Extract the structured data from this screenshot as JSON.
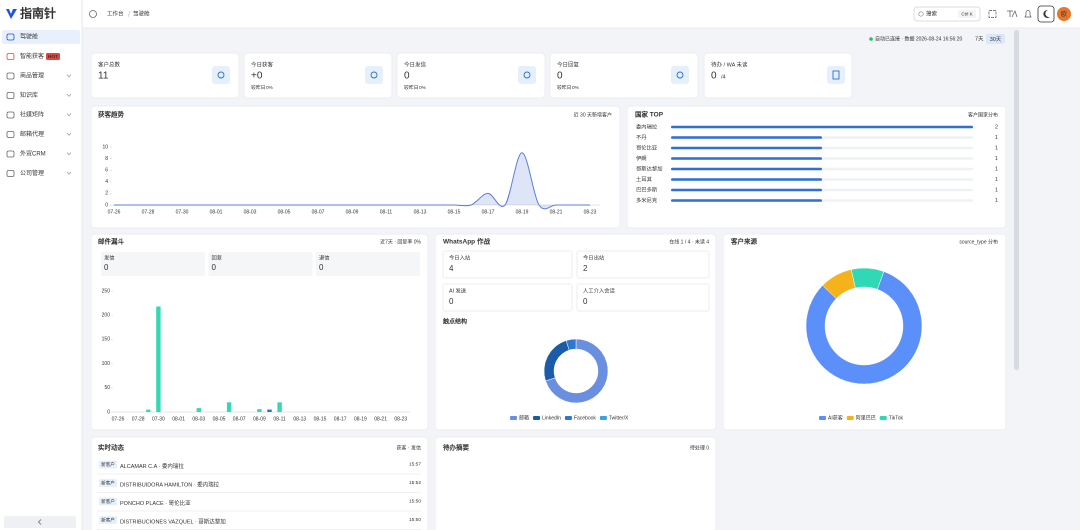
{
  "sidebar": {
    "logo": "指南针",
    "menu": [
      {
        "label": "驾驶舱"
      },
      {
        "label": "智能获客",
        "tag": "HOT"
      },
      {
        "label": "商品管理"
      },
      {
        "label": "知识库"
      },
      {
        "label": "社媒矩阵"
      },
      {
        "label": "邮箱代理"
      },
      {
        "label": "外贸CRM"
      },
      {
        "label": "公司管理"
      }
    ]
  },
  "topbar": {
    "breadcrumb": [
      "工作台",
      "驾驶舱"
    ],
    "search": "搜索",
    "shortcut": "Ctrl K",
    "avatar": "欧"
  },
  "status": {
    "text": "自动已连接 · 数据 2026-08-24 16:56:20",
    "ranges": [
      "7天",
      "30天"
    ]
  },
  "stats": [
    {
      "label": "客户总数",
      "value": 11
    },
    {
      "label": "今日获客",
      "value": "+0",
      "sub": "较昨日",
      "change": "0%"
    },
    {
      "label": "今日发信",
      "value": 0,
      "sub": "较昨日",
      "change": "0%"
    },
    {
      "label": "今日回复",
      "value": 0,
      "sub": "较昨日",
      "change": "0%"
    },
    {
      "label": "待办 / WA 未读",
      "value": 0,
      "extra": "/4"
    }
  ],
  "mail_stats": [
    {
      "label": "发信",
      "value": 0
    },
    {
      "label": "回复",
      "value": 0
    },
    {
      "label": "退信",
      "value": 0
    }
  ],
  "whatsapp": {
    "title": "WhatsApp 作战",
    "subtitle": "在线 1 / 4 · 未读 4",
    "stats": [
      {
        "label": "今日入站",
        "value": 4
      },
      {
        "label": "今日出站",
        "value": 2
      },
      {
        "label": "AI 发送",
        "value": 0
      },
      {
        "label": "人工介入会话",
        "value": 0
      }
    ]
  },
  "activity": {
    "title": "实时动态",
    "subtitle": "获客 · 发信",
    "rows": [
      {
        "tag": "新客户",
        "text": "ALCAMAR C.A · 委内瑞拉",
        "time": "15:57"
      },
      {
        "tag": "新客户",
        "text": "DISTRIBUIDORA HAMILTON · 委内瑞拉",
        "time": "15:52"
      },
      {
        "tag": "新客户",
        "text": "PONCHO PLACE · 哥伦比亚",
        "time": "15:50"
      },
      {
        "tag": "新客户",
        "text": "DISTRIBUCIONES VAZQUEL · 哥斯达黎加",
        "time": "15:50"
      }
    ]
  },
  "todo": {
    "title": "待办摘要",
    "subtitle": "待处理 0"
  },
  "chart_data": [
    {
      "type": "line",
      "title": "获客趋势",
      "subtitle": "近 30 天新增客户",
      "color": "#5b7fd6",
      "categories": [
        "07-26",
        null,
        "07-28",
        null,
        "07-30",
        null,
        "08-01",
        null,
        "08-03",
        null,
        "08-05",
        null,
        "08-07",
        null,
        "08-09",
        null,
        "08-11",
        null,
        "08-13",
        null,
        "08-15",
        null,
        "08-17",
        null,
        "08-19",
        null,
        "08-21",
        null,
        "08-23"
      ],
      "values": [
        0,
        0,
        0,
        0,
        0,
        0,
        0,
        0,
        0,
        0,
        0,
        0,
        0,
        0,
        0,
        0,
        0,
        0,
        0,
        0,
        0,
        0,
        2,
        0,
        9,
        0,
        0,
        0,
        0
      ],
      "ylim": [
        0,
        10
      ],
      "yticks": [
        0,
        2,
        4,
        6,
        8,
        10
      ]
    },
    {
      "type": "bar",
      "title": "邮件漏斗",
      "subtitle": "近7天 · 回复率 0%",
      "categories": [
        "07-26",
        null,
        "07-28",
        null,
        "07-30",
        null,
        "08-01",
        null,
        "08-03",
        null,
        "08-05",
        null,
        "08-07",
        null,
        "08-09",
        null,
        "08-11",
        null,
        "08-13",
        null,
        "08-15",
        null,
        "08-17",
        null,
        "08-19",
        null,
        "08-21",
        null,
        "08-23"
      ],
      "values": [
        0,
        0,
        0,
        5,
        218,
        0,
        0,
        0,
        8,
        0,
        0,
        20,
        0,
        0,
        6,
        5,
        20,
        0,
        0,
        0,
        0,
        0,
        0,
        0,
        0,
        0,
        0,
        0,
        0
      ],
      "colors": [
        "#34d8b3",
        "#34d8b3",
        "#34d8b3",
        "#34d8b3",
        "#34d8b3",
        "#34d8b3",
        "#34d8b3",
        "#34d8b3",
        "#34d8b3",
        "#34d8b3",
        "#34d8b3",
        "#34d8b3",
        "#34d8b3",
        "#34d8b3",
        "#34d8b3",
        "#2b6fd0",
        "#34d8b3",
        "#34d8b3",
        "#34d8b3",
        "#34d8b3",
        "#34d8b3",
        "#34d8b3",
        "#34d8b3",
        "#34d8b3",
        "#34d8b3",
        "#34d8b3",
        "#34d8b3",
        "#34d8b3",
        "#34d8b3"
      ],
      "ylim": [
        0,
        250
      ],
      "yticks": [
        0,
        50,
        100,
        150,
        200,
        250
      ]
    },
    {
      "type": "hbar",
      "title": "国家 TOP",
      "subtitle": "客户国家分布",
      "color": "#2f6fd6",
      "categories": [
        "委内瑞拉",
        "不丹",
        "哥伦比亚",
        "伊朗",
        "哥斯达黎加",
        "土耳其",
        "巴巴多斯",
        "多米尼克"
      ],
      "values": [
        2,
        1,
        1,
        1,
        1,
        1,
        1,
        1
      ],
      "xlim": [
        0,
        2
      ]
    },
    {
      "type": "donut",
      "title": "触点结构",
      "categories": [
        "邮箱",
        "LinkedIn",
        "Facebook",
        "Twitter/X"
      ],
      "values": [
        70,
        25,
        5,
        0
      ],
      "colors": [
        "#6b8fe0",
        "#1a5ca8",
        "#2d78d0",
        "#38a3e0"
      ]
    },
    {
      "type": "donut",
      "title": "客户来源",
      "subtitle": "source_type 分布",
      "categories": [
        "AI获客",
        "阿里巴巴",
        "TikTok"
      ],
      "values": [
        9,
        1,
        1
      ],
      "colors": [
        "#5b8ff9",
        "#f6b21b",
        "#2fd9b6"
      ]
    }
  ]
}
